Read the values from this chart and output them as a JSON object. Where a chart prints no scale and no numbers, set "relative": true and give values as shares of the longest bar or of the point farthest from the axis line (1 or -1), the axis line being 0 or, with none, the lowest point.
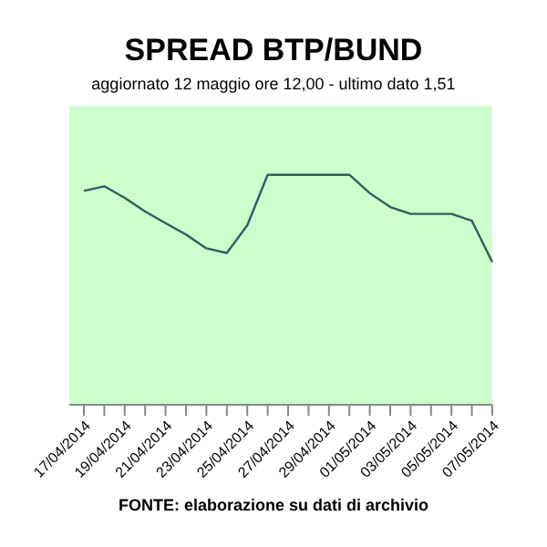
{
  "chart_data": {
    "type": "line",
    "title": "SPREAD BTP/BUND",
    "subtitle": "aggiornato 12 maggio ore 12,00 - ultimo dato 1,51",
    "annotations": [
      "FONTE: elaborazione su dati di archivio"
    ],
    "categories": [
      "17/04/2014",
      null,
      "19/04/2014",
      null,
      "21/04/2014",
      null,
      "23/04/2014",
      null,
      "25/04/2014",
      null,
      "27/04/2014",
      null,
      "29/04/2014",
      null,
      "01/05/2014",
      null,
      "03/05/2014",
      null,
      "05/05/2014",
      null,
      "07/05/2014"
    ],
    "relative": true,
    "legend": false,
    "series": [
      {
        "color": "#2f5f5f",
        "values": [
          0.93,
          0.95,
          0.9,
          0.84,
          0.79,
          0.74,
          0.68,
          0.66,
          0.78,
          1,
          1,
          1,
          1,
          1,
          0.92,
          0.86,
          0.83,
          0.83,
          0.83,
          0.8,
          0.62
        ]
      }
    ]
  }
}
